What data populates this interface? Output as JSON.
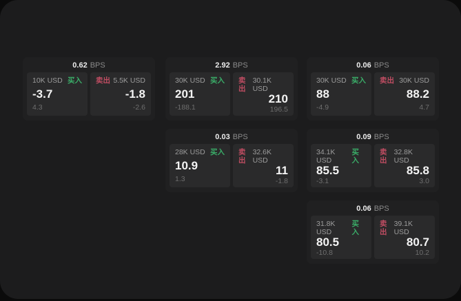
{
  "labels": {
    "buy": "买入",
    "sell": "卖出",
    "bps_unit": "BPS"
  },
  "colors": {
    "page_background": "#0b0b0b",
    "surface": "#1c1c1d",
    "card": "#202021",
    "panel": "#2a2a2b",
    "buy_green": "#3aac68",
    "sell_red": "#bf4d62",
    "value_white": "#f4f4f4",
    "label_grey": "#9c9c9c",
    "delta_grey": "#6e6e6e"
  },
  "cards": [
    {
      "bps": "0.62",
      "col": 0,
      "row": 0,
      "buy": {
        "notional": "10K USD",
        "price": "-3.7",
        "delta": "4.3"
      },
      "sell": {
        "notional": "5.5K USD",
        "price": "-1.8",
        "delta": "-2.6"
      }
    },
    {
      "bps": "2.92",
      "col": 1,
      "row": 0,
      "buy": {
        "notional": "30K USD",
        "price": "201",
        "delta": "-188.1"
      },
      "sell": {
        "notional": "30.1K USD",
        "price": "210",
        "delta": "196.5"
      }
    },
    {
      "bps": "0.06",
      "col": 2,
      "row": 0,
      "buy": {
        "notional": "30K USD",
        "price": "88",
        "delta": "-4.9"
      },
      "sell": {
        "notional": "30K USD",
        "price": "88.2",
        "delta": "4.7"
      }
    },
    {
      "bps": "0.03",
      "col": 1,
      "row": 1,
      "buy": {
        "notional": "28K USD",
        "price": "10.9",
        "delta": "1.3"
      },
      "sell": {
        "notional": "32.6K USD",
        "price": "11",
        "delta": "-1.8"
      }
    },
    {
      "bps": "0.09",
      "col": 2,
      "row": 1,
      "buy": {
        "notional": "34.1K USD",
        "price": "85.5",
        "delta": "-3.1"
      },
      "sell": {
        "notional": "32.8K USD",
        "price": "85.8",
        "delta": "3.0"
      }
    },
    {
      "bps": "0.06",
      "col": 2,
      "row": 2,
      "buy": {
        "notional": "31.8K USD",
        "price": "80.5",
        "delta": "-10.8"
      },
      "sell": {
        "notional": "39.1K USD",
        "price": "80.7",
        "delta": "10.2"
      }
    }
  ]
}
